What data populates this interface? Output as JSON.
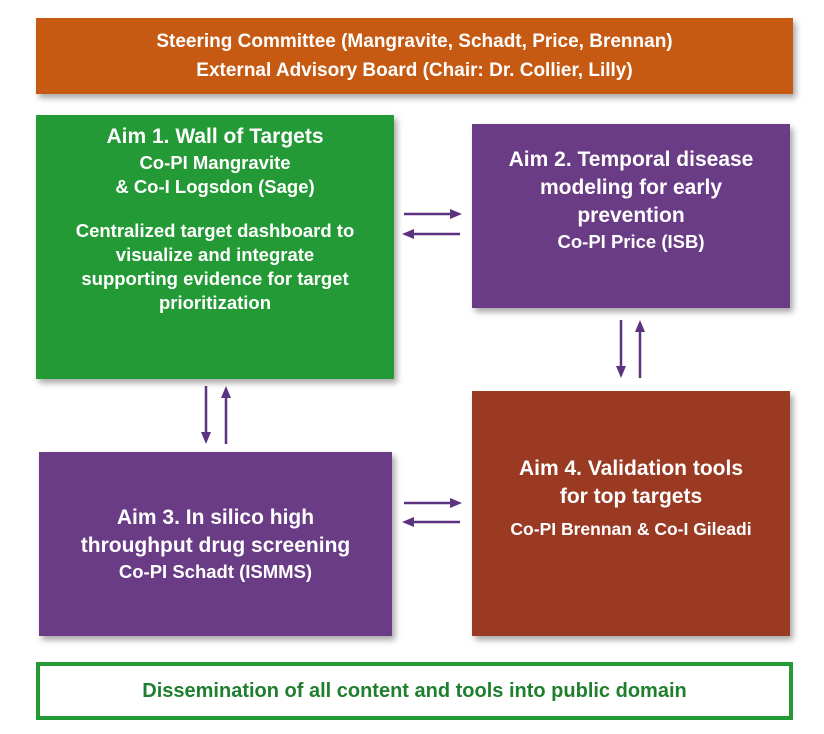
{
  "header": {
    "line1": "Steering Committee (Mangravite, Schadt, Price, Brennan)",
    "line2": "External Advisory Board (Chair: Dr. Collier, Lilly)"
  },
  "aim1": {
    "title": "Aim 1. Wall of Targets",
    "lead1": "Co-PI Mangravite",
    "lead2": "& Co-I Logsdon (Sage)",
    "desc": [
      "Centralized target dashboard to",
      "visualize and integrate",
      "supporting evidence for target",
      "prioritization"
    ]
  },
  "aim2": {
    "lines": [
      "Aim 2. Temporal disease",
      "modeling for early",
      "prevention"
    ],
    "lead": "Co-PI Price (ISB)"
  },
  "aim3": {
    "lines": [
      "Aim 3. In silico high",
      "throughput drug screening"
    ],
    "lead": "Co-PI Schadt (ISMMS)"
  },
  "aim4": {
    "lines": [
      "Aim 4. Validation tools",
      "for top targets"
    ],
    "lead": "Co-PI Brennan & Co-I Gileadi"
  },
  "footer": {
    "text": "Dissemination of all content and tools into public domain"
  },
  "colors": {
    "header": "#c65a12",
    "aim1": "#239a36",
    "aim2": "#6b3c86",
    "aim3": "#6b3c86",
    "aim4": "#9a3a23",
    "arrow": "#5c3381"
  }
}
